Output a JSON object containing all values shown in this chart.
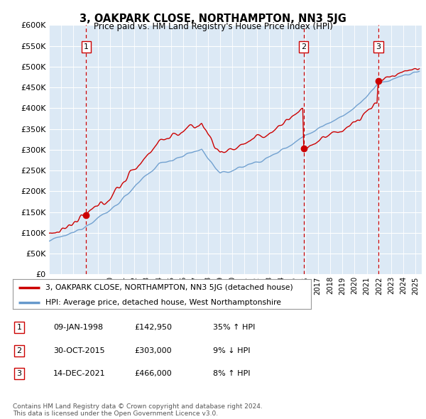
{
  "title": "3, OAKPARK CLOSE, NORTHAMPTON, NN3 5JG",
  "subtitle": "Price paid vs. HM Land Registry's House Price Index (HPI)",
  "bg_color": "#dce9f5",
  "grid_color": "#ffffff",
  "ylim": [
    0,
    600000
  ],
  "yticks": [
    0,
    50000,
    100000,
    150000,
    200000,
    250000,
    300000,
    350000,
    400000,
    450000,
    500000,
    550000,
    600000
  ],
  "xlim_start": 1995.0,
  "xlim_end": 2025.5,
  "sale_dates": [
    1998.03,
    2015.83,
    2021.96
  ],
  "sale_prices": [
    142950,
    303000,
    466000
  ],
  "dashed_line_color": "#cc0000",
  "dot_color": "#cc0000",
  "hpi_line_color": "#6699cc",
  "price_line_color": "#cc0000",
  "legend_label_price": "3, OAKPARK CLOSE, NORTHAMPTON, NN3 5JG (detached house)",
  "legend_label_hpi": "HPI: Average price, detached house, West Northamptonshire",
  "table_rows": [
    [
      "1",
      "09-JAN-1998",
      "£142,950",
      "35% ↑ HPI"
    ],
    [
      "2",
      "30-OCT-2015",
      "£303,000",
      "9% ↓ HPI"
    ],
    [
      "3",
      "14-DEC-2021",
      "£466,000",
      "8% ↑ HPI"
    ]
  ],
  "footer": "Contains HM Land Registry data © Crown copyright and database right 2024.\nThis data is licensed under the Open Government Licence v3.0."
}
